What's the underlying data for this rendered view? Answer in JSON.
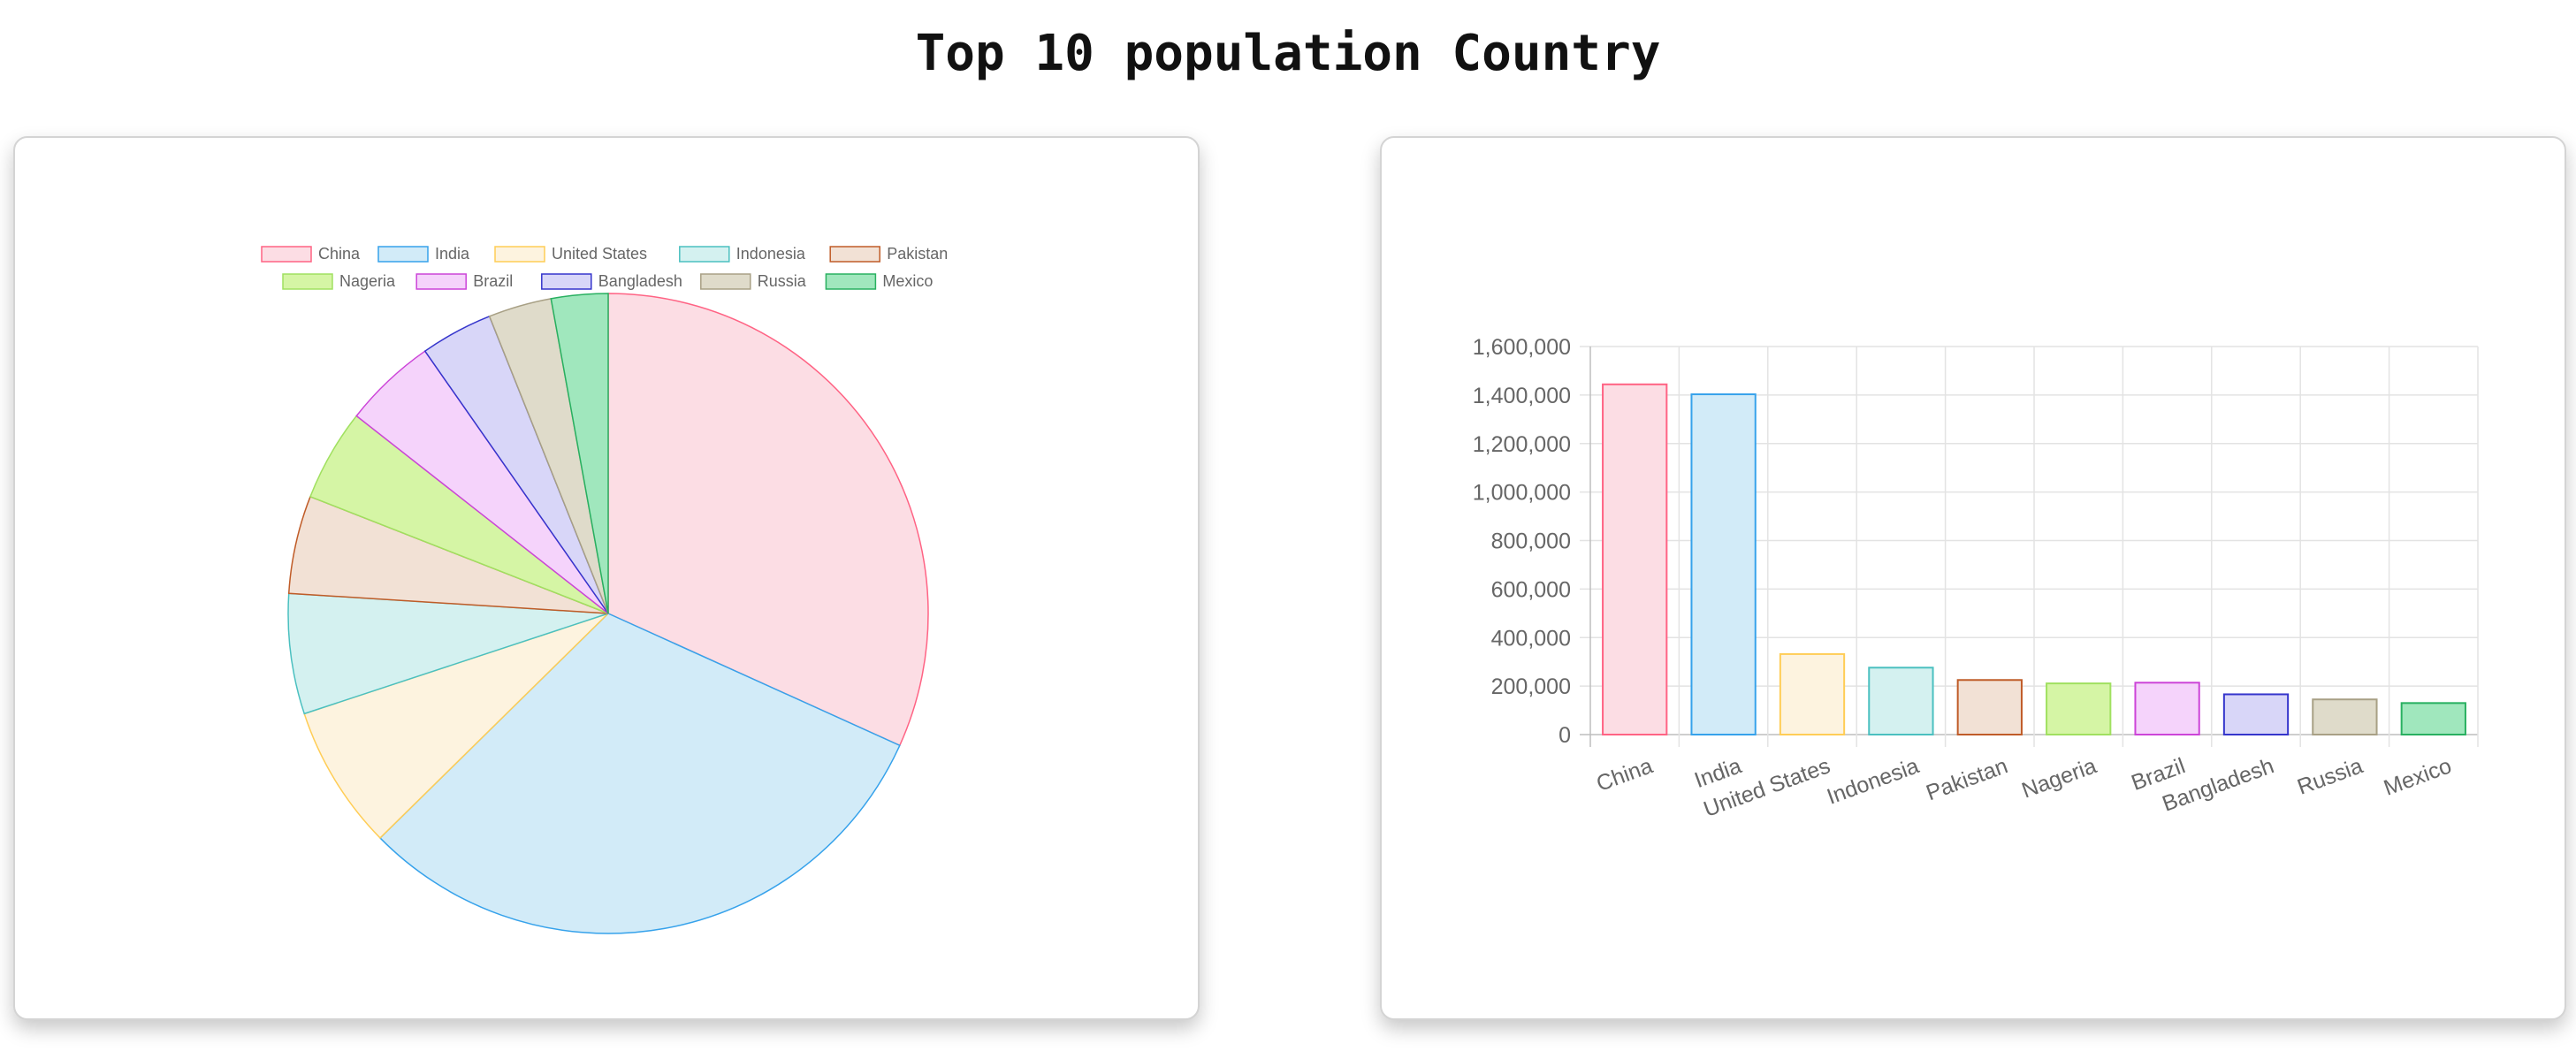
{
  "page": {
    "title": "Top 10 population Country"
  },
  "chart_data": [
    {
      "type": "pie",
      "title": "",
      "legend_position": "top",
      "categories": [
        "China",
        "India",
        "United States",
        "Indonesia",
        "Pakistan",
        "Nageria",
        "Brazil",
        "Bangladesh",
        "Russia",
        "Mexico"
      ],
      "values": [
        1444000,
        1403000,
        332000,
        276000,
        225000,
        211000,
        214000,
        166000,
        145000,
        130000
      ],
      "colors": {
        "fill": [
          "#fcdde4",
          "#d2ebf8",
          "#fdf3df",
          "#d4f1f0",
          "#f2e1d5",
          "#d5f5a5",
          "#f5d3fb",
          "#d8d6f8",
          "#dfdbca",
          "#a0e7bd"
        ],
        "border": [
          "#ff6384",
          "#36a2eb",
          "#ffcd56",
          "#4bc0c0",
          "#c05c28",
          "#a0e060",
          "#cc44d8",
          "#3535cc",
          "#a8a085",
          "#28b060"
        ]
      }
    },
    {
      "type": "bar",
      "title": "",
      "xlabel": "",
      "ylabel": "",
      "legend_position": "none",
      "grid": true,
      "categories": [
        "China",
        "India",
        "United States",
        "Indonesia",
        "Pakistan",
        "Nageria",
        "Brazil",
        "Bangladesh",
        "Russia",
        "Mexico"
      ],
      "values": [
        1444000,
        1403000,
        332000,
        276000,
        225000,
        211000,
        214000,
        166000,
        145000,
        130000
      ],
      "ylim": [
        0,
        1600000
      ],
      "yticks": [
        "0",
        "200,000",
        "400,000",
        "600,000",
        "800,000",
        "1,000,000",
        "1,200,000",
        "1,400,000",
        "1,600,000"
      ]
    }
  ]
}
